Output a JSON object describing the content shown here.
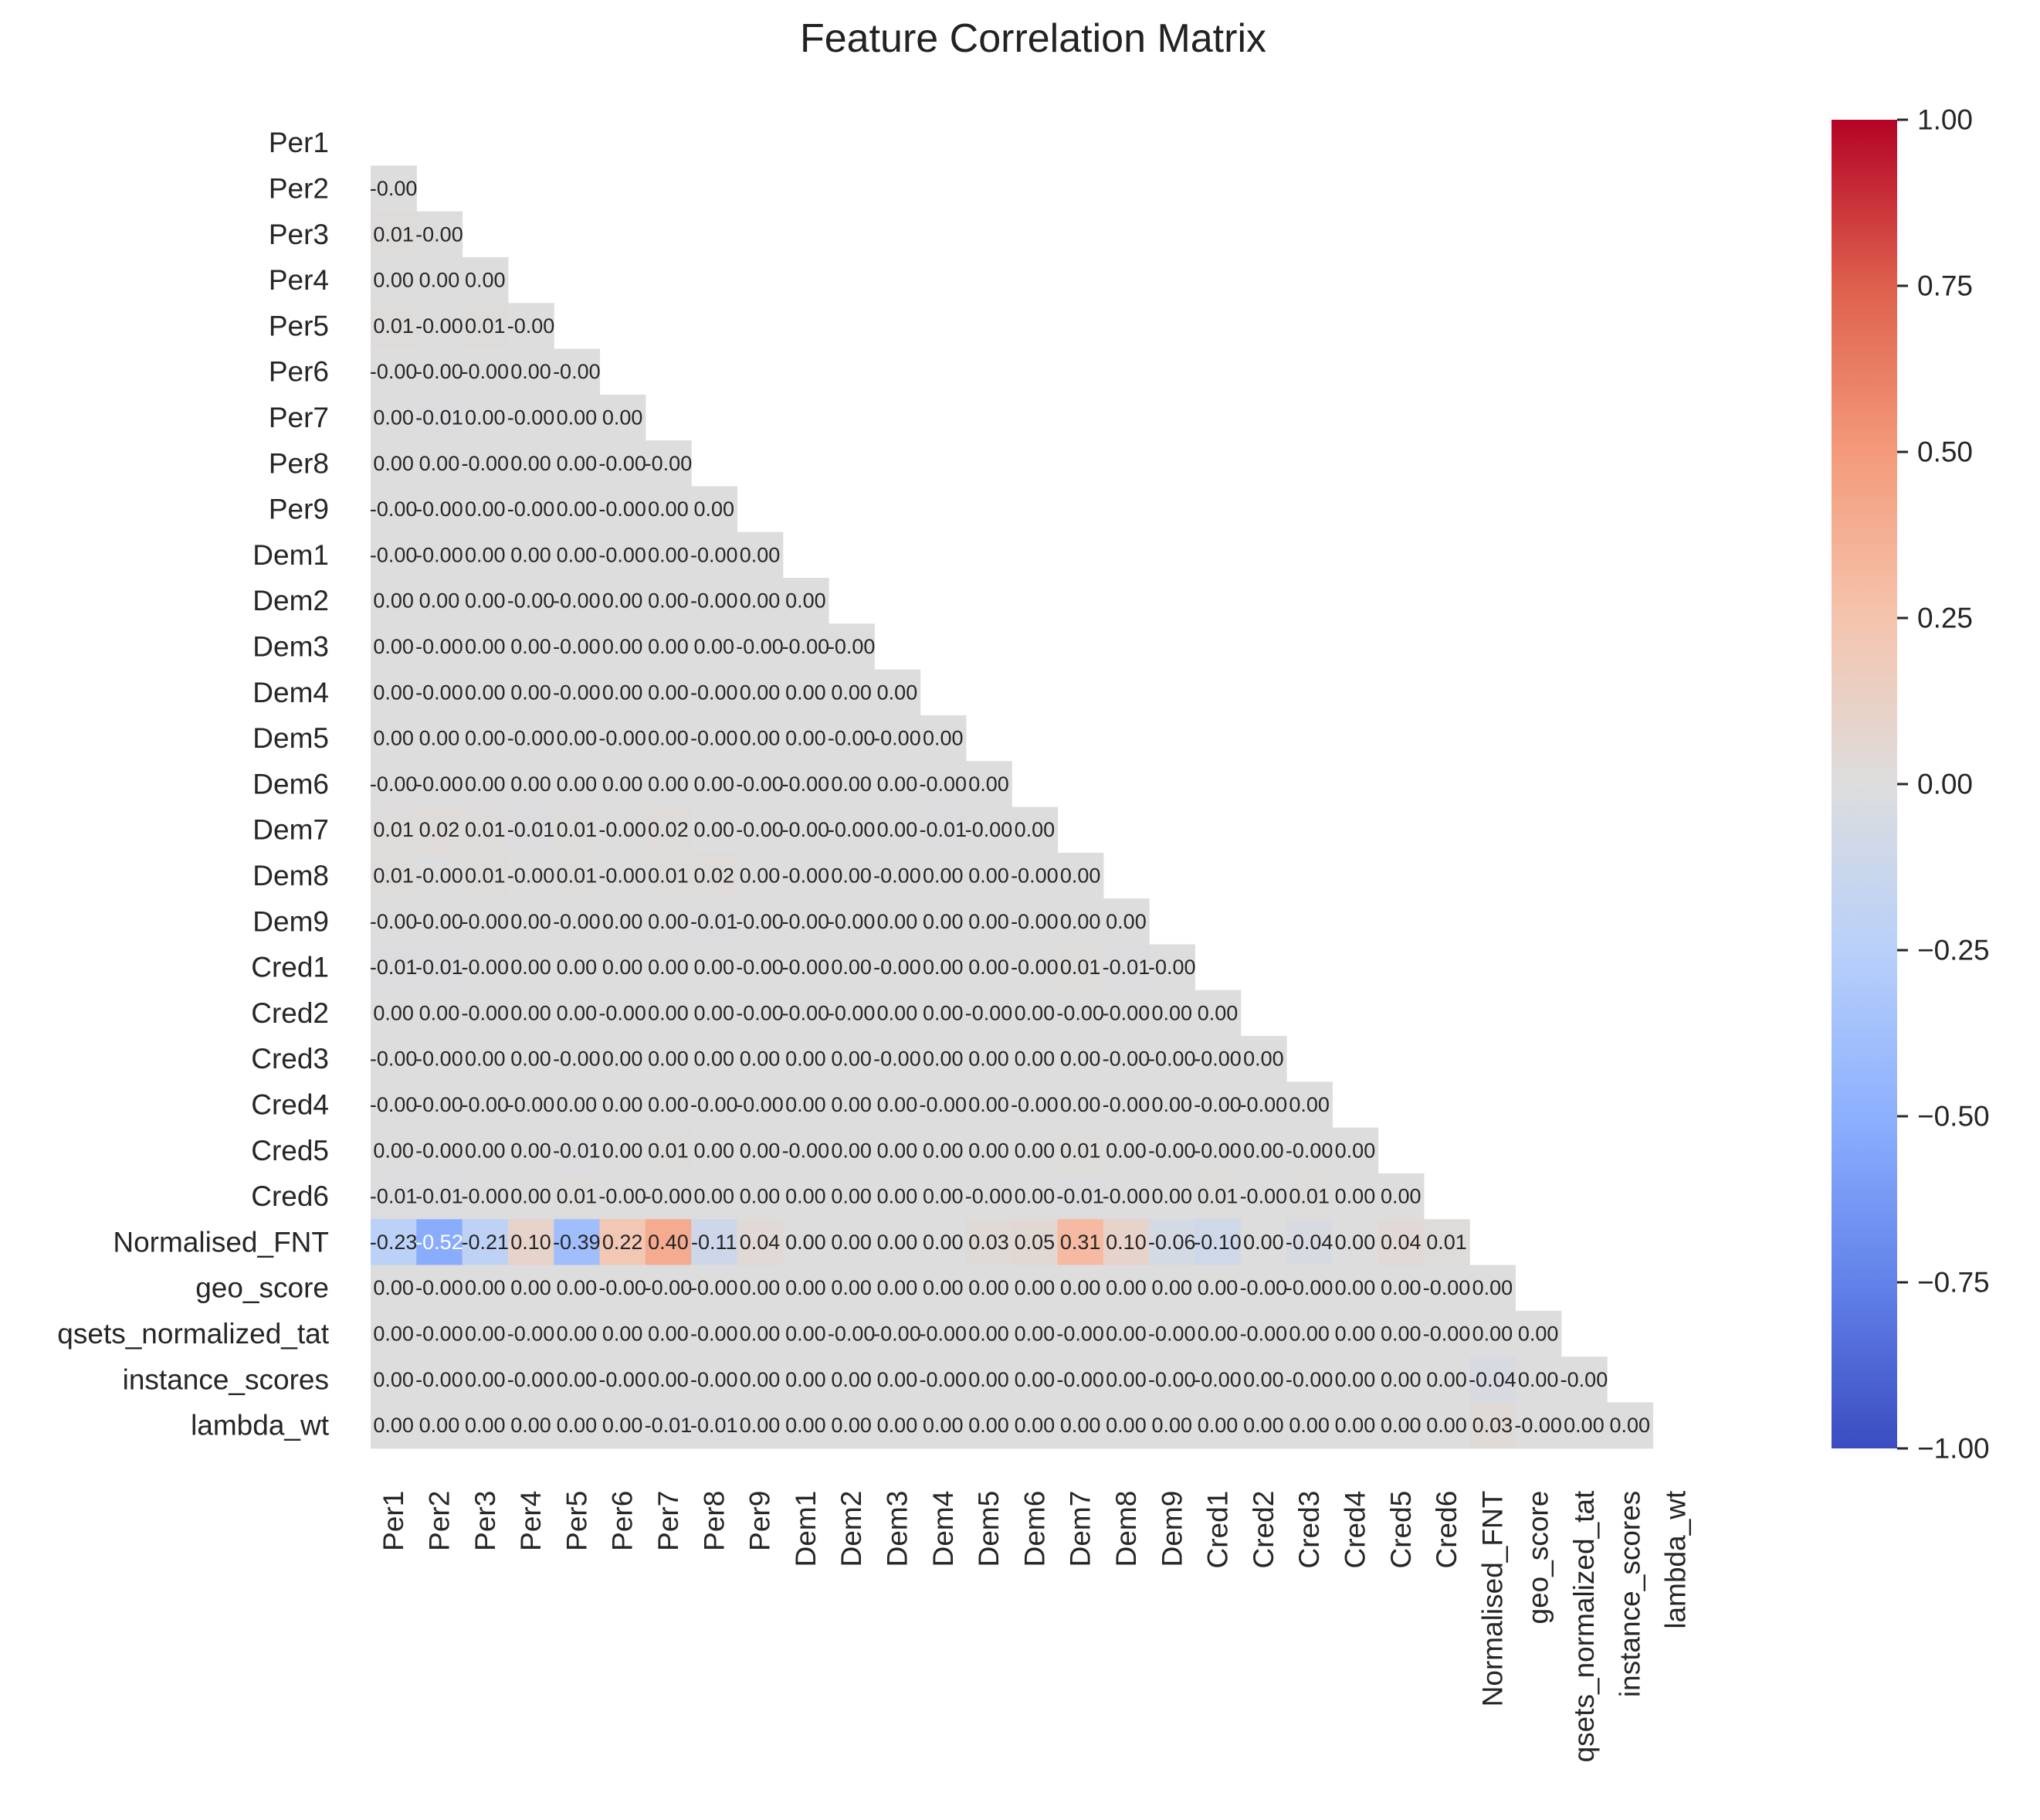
{
  "chart_data": {
    "type": "heatmap",
    "title": "Feature Correlation Matrix",
    "subtitle": "",
    "xlabel": "",
    "ylabel": "",
    "mask": "upper-triangle incl. diagonal",
    "labels": [
      "Per1",
      "Per2",
      "Per3",
      "Per4",
      "Per5",
      "Per6",
      "Per7",
      "Per8",
      "Per9",
      "Dem1",
      "Dem2",
      "Dem3",
      "Dem4",
      "Dem5",
      "Dem6",
      "Dem7",
      "Dem8",
      "Dem9",
      "Cred1",
      "Cred2",
      "Cred3",
      "Cred4",
      "Cred5",
      "Cred6",
      "Normalised_FNT",
      "geo_score",
      "qsets_normalized_tat",
      "instance_scores",
      "lambda_wt"
    ],
    "cells": [
      [],
      [
        "-0.00"
      ],
      [
        "0.01",
        "-0.00"
      ],
      [
        "0.00",
        "0.00",
        "0.00"
      ],
      [
        "0.01",
        "-0.00",
        "0.01",
        "-0.00"
      ],
      [
        "-0.00",
        "-0.00",
        "-0.00",
        "0.00",
        "-0.00"
      ],
      [
        "0.00",
        "-0.01",
        "0.00",
        "-0.00",
        "0.00",
        "0.00"
      ],
      [
        "0.00",
        "0.00",
        "-0.00",
        "0.00",
        "0.00",
        "-0.00",
        "-0.00"
      ],
      [
        "-0.00",
        "-0.00",
        "0.00",
        "-0.00",
        "0.00",
        "-0.00",
        "0.00",
        "0.00"
      ],
      [
        "-0.00",
        "-0.00",
        "0.00",
        "0.00",
        "0.00",
        "-0.00",
        "0.00",
        "-0.00",
        "0.00"
      ],
      [
        "0.00",
        "0.00",
        "0.00",
        "-0.00",
        "-0.00",
        "0.00",
        "0.00",
        "-0.00",
        "0.00",
        "0.00"
      ],
      [
        "0.00",
        "-0.00",
        "0.00",
        "0.00",
        "-0.00",
        "0.00",
        "0.00",
        "0.00",
        "-0.00",
        "-0.00",
        "-0.00"
      ],
      [
        "0.00",
        "-0.00",
        "0.00",
        "0.00",
        "-0.00",
        "0.00",
        "0.00",
        "-0.00",
        "0.00",
        "0.00",
        "0.00",
        "0.00"
      ],
      [
        "0.00",
        "0.00",
        "0.00",
        "-0.00",
        "0.00",
        "-0.00",
        "0.00",
        "-0.00",
        "0.00",
        "0.00",
        "-0.00",
        "-0.00",
        "0.00"
      ],
      [
        "-0.00",
        "-0.00",
        "0.00",
        "0.00",
        "0.00",
        "0.00",
        "0.00",
        "0.00",
        "-0.00",
        "-0.00",
        "0.00",
        "0.00",
        "-0.00",
        "0.00"
      ],
      [
        "0.01",
        "0.02",
        "0.01",
        "-0.01",
        "0.01",
        "-0.00",
        "0.02",
        "0.00",
        "-0.00",
        "-0.00",
        "-0.00",
        "0.00",
        "-0.01",
        "-0.00",
        "0.00"
      ],
      [
        "0.01",
        "-0.00",
        "0.01",
        "-0.00",
        "0.01",
        "-0.00",
        "0.01",
        "0.02",
        "0.00",
        "-0.00",
        "0.00",
        "-0.00",
        "0.00",
        "0.00",
        "-0.00",
        "0.00"
      ],
      [
        "-0.00",
        "-0.00",
        "-0.00",
        "0.00",
        "-0.00",
        "0.00",
        "0.00",
        "-0.01",
        "-0.00",
        "-0.00",
        "-0.00",
        "0.00",
        "0.00",
        "0.00",
        "-0.00",
        "0.00",
        "0.00"
      ],
      [
        "-0.01",
        "-0.01",
        "-0.00",
        "0.00",
        "0.00",
        "0.00",
        "0.00",
        "0.00",
        "-0.00",
        "-0.00",
        "0.00",
        "-0.00",
        "0.00",
        "0.00",
        "-0.00",
        "0.01",
        "-0.01",
        "-0.00"
      ],
      [
        "0.00",
        "0.00",
        "-0.00",
        "0.00",
        "0.00",
        "-0.00",
        "0.00",
        "0.00",
        "-0.00",
        "-0.00",
        "-0.00",
        "0.00",
        "0.00",
        "-0.00",
        "0.00",
        "-0.00",
        "-0.00",
        "0.00",
        "0.00"
      ],
      [
        "-0.00",
        "-0.00",
        "0.00",
        "0.00",
        "-0.00",
        "0.00",
        "0.00",
        "0.00",
        "0.00",
        "0.00",
        "0.00",
        "-0.00",
        "0.00",
        "0.00",
        "0.00",
        "0.00",
        "-0.00",
        "-0.00",
        "-0.00",
        "0.00"
      ],
      [
        "-0.00",
        "-0.00",
        "-0.00",
        "-0.00",
        "0.00",
        "0.00",
        "0.00",
        "-0.00",
        "-0.00",
        "0.00",
        "0.00",
        "0.00",
        "-0.00",
        "0.00",
        "-0.00",
        "0.00",
        "-0.00",
        "0.00",
        "-0.00",
        "-0.00",
        "0.00"
      ],
      [
        "0.00",
        "-0.00",
        "0.00",
        "0.00",
        "-0.01",
        "0.00",
        "0.01",
        "0.00",
        "0.00",
        "-0.00",
        "0.00",
        "0.00",
        "0.00",
        "0.00",
        "0.00",
        "0.01",
        "0.00",
        "-0.00",
        "-0.00",
        "0.00",
        "-0.00",
        "0.00"
      ],
      [
        "-0.01",
        "-0.01",
        "-0.00",
        "0.00",
        "0.01",
        "-0.00",
        "-0.00",
        "0.00",
        "0.00",
        "0.00",
        "0.00",
        "0.00",
        "0.00",
        "-0.00",
        "0.00",
        "-0.01",
        "-0.00",
        "0.00",
        "0.01",
        "-0.00",
        "0.01",
        "0.00",
        "0.00"
      ],
      [
        "-0.23",
        "-0.52",
        "-0.21",
        "0.10",
        "-0.39",
        "0.22",
        "0.40",
        "-0.11",
        "0.04",
        "0.00",
        "0.00",
        "0.00",
        "0.00",
        "0.03",
        "0.05",
        "0.31",
        "0.10",
        "-0.06",
        "-0.10",
        "0.00",
        "-0.04",
        "0.00",
        "0.04",
        "0.01"
      ],
      [
        "0.00",
        "-0.00",
        "0.00",
        "0.00",
        "0.00",
        "-0.00",
        "-0.00",
        "-0.00",
        "0.00",
        "0.00",
        "0.00",
        "0.00",
        "0.00",
        "0.00",
        "0.00",
        "0.00",
        "0.00",
        "0.00",
        "0.00",
        "-0.00",
        "-0.00",
        "0.00",
        "0.00",
        "-0.00",
        "0.00"
      ],
      [
        "0.00",
        "-0.00",
        "0.00",
        "-0.00",
        "0.00",
        "0.00",
        "0.00",
        "-0.00",
        "0.00",
        "0.00",
        "-0.00",
        "-0.00",
        "-0.00",
        "0.00",
        "0.00",
        "-0.00",
        "0.00",
        "-0.00",
        "0.00",
        "-0.00",
        "0.00",
        "0.00",
        "0.00",
        "-0.00",
        "0.00",
        "0.00"
      ],
      [
        "0.00",
        "-0.00",
        "0.00",
        "-0.00",
        "0.00",
        "-0.00",
        "0.00",
        "-0.00",
        "0.00",
        "0.00",
        "0.00",
        "0.00",
        "-0.00",
        "0.00",
        "0.00",
        "-0.00",
        "0.00",
        "-0.00",
        "-0.00",
        "0.00",
        "-0.00",
        "0.00",
        "0.00",
        "0.00",
        "-0.04",
        "0.00",
        "-0.00"
      ],
      [
        "0.00",
        "0.00",
        "0.00",
        "0.00",
        "0.00",
        "0.00",
        "-0.01",
        "-0.01",
        "0.00",
        "0.00",
        "0.00",
        "0.00",
        "0.00",
        "0.00",
        "0.00",
        "0.00",
        "0.00",
        "0.00",
        "0.00",
        "0.00",
        "0.00",
        "0.00",
        "0.00",
        "0.00",
        "0.03",
        "-0.00",
        "0.00",
        "0.00"
      ]
    ],
    "colorbar": {
      "colormap": "coolwarm",
      "min": -1.0,
      "max": 1.0,
      "tick_labels": [
        "1.00",
        "0.75",
        "0.50",
        "0.25",
        "0.00",
        "−0.25",
        "−0.50",
        "−0.75",
        "−1.00"
      ],
      "tick_values": [
        1.0,
        0.75,
        0.5,
        0.25,
        0.0,
        -0.25,
        -0.5,
        -0.75,
        -1.0
      ]
    },
    "legend": "colorbar-right",
    "grid": false
  }
}
